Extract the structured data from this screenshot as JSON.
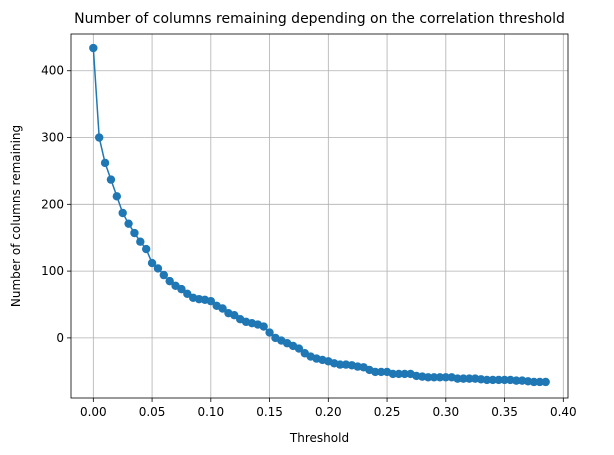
{
  "chart_data": {
    "type": "line",
    "title": "Number of columns remaining depending on the correlation threshold",
    "xlabel": "Threshold",
    "ylabel": "Number of columns remaining",
    "xlim": [
      -0.019,
      0.404
    ],
    "ylim": [
      -90,
      455
    ],
    "xticks": [
      0.0,
      0.05,
      0.1,
      0.15,
      0.2,
      0.25,
      0.3,
      0.35,
      0.4
    ],
    "xtick_labels": [
      "0.00",
      "0.05",
      "0.10",
      "0.15",
      "0.20",
      "0.25",
      "0.30",
      "0.35",
      "0.40"
    ],
    "yticks": [
      0,
      100,
      200,
      300,
      400
    ],
    "ytick_labels": [
      "0",
      "100",
      "200",
      "300",
      "400"
    ],
    "grid": true,
    "marker": "circle",
    "series": [
      {
        "color": "#1f77b4",
        "x": [
          0.0,
          0.005,
          0.01,
          0.015,
          0.02,
          0.025,
          0.03,
          0.035,
          0.04,
          0.045,
          0.05,
          0.055,
          0.06,
          0.065,
          0.07,
          0.075,
          0.08,
          0.085,
          0.09,
          0.095,
          0.1,
          0.105,
          0.11,
          0.115,
          0.12,
          0.125,
          0.13,
          0.135,
          0.14,
          0.145,
          0.15,
          0.155,
          0.16,
          0.165,
          0.17,
          0.175,
          0.18,
          0.185,
          0.19,
          0.195,
          0.2,
          0.205,
          0.21,
          0.215,
          0.22,
          0.225,
          0.23,
          0.235,
          0.24,
          0.245,
          0.25,
          0.255,
          0.26,
          0.265,
          0.27,
          0.275,
          0.28,
          0.285,
          0.29,
          0.295,
          0.3,
          0.305,
          0.31,
          0.315,
          0.32,
          0.325,
          0.33,
          0.335,
          0.34,
          0.345,
          0.35,
          0.355,
          0.36,
          0.365,
          0.37,
          0.375,
          0.38,
          0.385
        ],
        "y": [
          434,
          300,
          262,
          237,
          212,
          187,
          171,
          157,
          144,
          133,
          112,
          104,
          94,
          85,
          78,
          73,
          66,
          60,
          58,
          57,
          55,
          48,
          44,
          37,
          34,
          28,
          24,
          22,
          20,
          17,
          8,
          0,
          -4,
          -8,
          -12,
          -16,
          -23,
          -28,
          -31,
          -33,
          -35,
          -38,
          -40,
          -40,
          -41,
          -43,
          -44,
          -48,
          -51,
          -51,
          -51,
          -54,
          -54,
          -54,
          -54,
          -57,
          -58,
          -59,
          -59,
          -59,
          -59,
          -59,
          -61,
          -61,
          -61,
          -61,
          -62,
          -63,
          -63,
          -63,
          -63,
          -63,
          -64,
          -64,
          -65,
          -66,
          -66,
          -66
        ]
      }
    ]
  }
}
